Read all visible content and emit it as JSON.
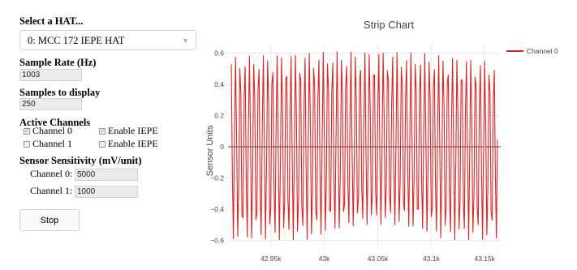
{
  "hat": {
    "label": "Select a HAT...",
    "selected": "0: MCC 172 IEPE HAT"
  },
  "sample_rate": {
    "label": "Sample Rate (Hz)",
    "value": "1003"
  },
  "samples": {
    "label": "Samples to display",
    "value": "250"
  },
  "channels": {
    "label": "Active Channels",
    "items": [
      {
        "label": "Channel 0",
        "checked": true,
        "iepe_label": "Enable IEPE",
        "iepe_checked": true
      },
      {
        "label": "Channel 1",
        "checked": false,
        "iepe_label": "Enable IEPE",
        "iepe_checked": false
      }
    ]
  },
  "sensitivity": {
    "label": "Sensor Sensitivity (mV/unit)",
    "rows": [
      {
        "label": "Channel 0:",
        "value": "5000"
      },
      {
        "label": "Channel 1:",
        "value": "1000"
      }
    ]
  },
  "stop_label": "Stop",
  "colors": {
    "trace": "#d62728",
    "grid": "#e9e9e9"
  },
  "chart_data": {
    "type": "line",
    "title": "Strip Chart",
    "ylabel": "Sensor Units",
    "xlabel": "",
    "legend_placement": "top-right",
    "series": [
      {
        "name": "Channel 0",
        "x_range": [
          42913,
          43162
        ],
        "samples": 250,
        "sample_rate_hz": 1003,
        "periods": 57.7,
        "amplitude_start": 0.575,
        "amplitude_mid": 0.615,
        "amplitude_end": 0.54,
        "negative_peak_mid": -0.5
      }
    ],
    "xlim": [
      42910,
      43165
    ],
    "ylim": [
      -0.65,
      0.66
    ],
    "x_tick_values": [
      42950,
      43000,
      43050,
      43100,
      43150
    ],
    "x_tick_labels": [
      "42.95k",
      "43k",
      "43.05k",
      "43.1k",
      "43.15k"
    ],
    "y_ticks": [
      0.6,
      0.4,
      0.2,
      0,
      -0.2,
      -0.4,
      -0.6
    ],
    "y_tick_labels": [
      "0.6",
      "0.4",
      "0.2",
      "0",
      "−0.2",
      "−0.4",
      "−0.6"
    ],
    "grid": true
  }
}
